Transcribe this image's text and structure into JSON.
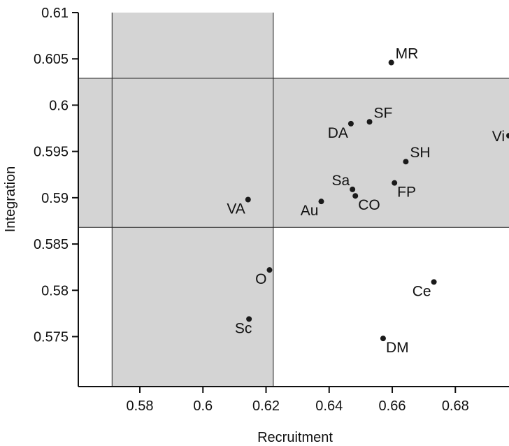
{
  "chart_data": {
    "type": "scatter",
    "xlabel": "Recruitment",
    "ylabel": "Integration",
    "xlim": [
      0.5605,
      0.697
    ],
    "ylim": [
      0.5696,
      0.61
    ],
    "x_ticks": [
      "0.58",
      "0.6",
      "0.62",
      "0.64",
      "0.66",
      "0.68"
    ],
    "x_tick_values": [
      0.58,
      0.6,
      0.62,
      0.64,
      0.66,
      0.68
    ],
    "y_ticks": [
      "0.61",
      "0.605",
      "0.6",
      "0.595",
      "0.59",
      "0.585",
      "0.58",
      "0.575"
    ],
    "y_tick_values": [
      0.61,
      0.605,
      0.6,
      0.595,
      0.59,
      0.585,
      0.58,
      0.575
    ],
    "grid": false,
    "shaded_bands": {
      "vertical_x": [
        0.5712,
        0.6223
      ],
      "horizontal_y": [
        0.5868,
        0.6029
      ],
      "color": "#d4d4d4"
    },
    "points": [
      {
        "label": "MR",
        "x": 0.6597,
        "y": 0.6046,
        "pos": "ur"
      },
      {
        "label": "SF",
        "x": 0.6528,
        "y": 0.5982,
        "pos": "ur"
      },
      {
        "label": "DA",
        "x": 0.6469,
        "y": 0.598,
        "pos": "bl"
      },
      {
        "label": "Vi",
        "x": 0.697,
        "y": 0.5967,
        "pos": "l"
      },
      {
        "label": "SH",
        "x": 0.6643,
        "y": 0.5939,
        "pos": "ur"
      },
      {
        "label": "Sa",
        "x": 0.6474,
        "y": 0.5909,
        "pos": "ul"
      },
      {
        "label": "FP",
        "x": 0.6607,
        "y": 0.5916,
        "pos": "br"
      },
      {
        "label": "CO",
        "x": 0.6483,
        "y": 0.5902,
        "pos": "br"
      },
      {
        "label": "Au",
        "x": 0.6375,
        "y": 0.5896,
        "pos": "bl"
      },
      {
        "label": "VA",
        "x": 0.6143,
        "y": 0.5898,
        "pos": "bl"
      },
      {
        "label": "O",
        "x": 0.6211,
        "y": 0.5822,
        "pos": "bl"
      },
      {
        "label": "Ce",
        "x": 0.6732,
        "y": 0.5809,
        "pos": "bl"
      },
      {
        "label": "Sc",
        "x": 0.6146,
        "y": 0.5769,
        "pos": "b"
      },
      {
        "label": "DM",
        "x": 0.6571,
        "y": 0.5748,
        "pos": "br"
      }
    ],
    "marker_color": "#1a1a1a"
  }
}
